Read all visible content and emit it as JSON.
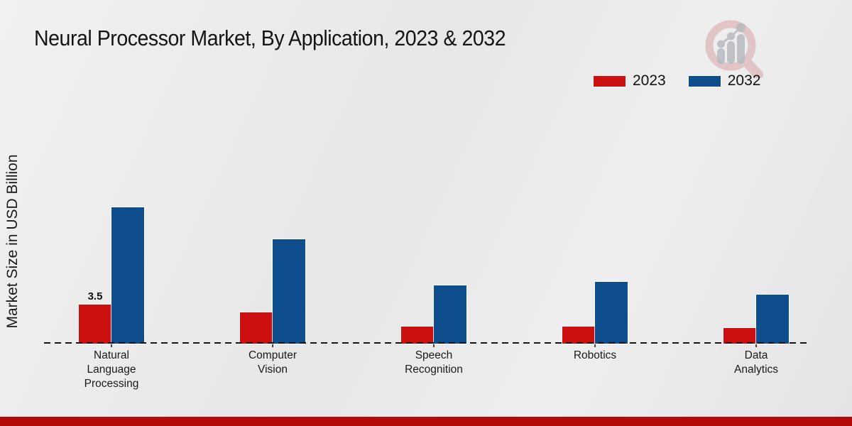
{
  "page": {
    "title": "Neural Processor Market, By Application, 2023 & 2032",
    "y_axis_label": "Market Size in USD Billion"
  },
  "legend": {
    "position": "top-right",
    "items": [
      {
        "label": "2023",
        "color": "#cc0f0f"
      },
      {
        "label": "2032",
        "color": "#0f4e8c"
      }
    ]
  },
  "chart_data": {
    "type": "bar",
    "title": "Neural Processor Market, By Application, 2023 & 2032",
    "ylabel": "Market Size in USD Billion",
    "unit": "USD Billion",
    "categories": [
      "Natural Language Processing",
      "Computer Vision",
      "Speech Recognition",
      "Robotics",
      "Data Analytics"
    ],
    "series": [
      {
        "name": "2023",
        "color": "#cc0f0f",
        "values": [
          3.5,
          2.75,
          1.5,
          1.5,
          1.4
        ]
      },
      {
        "name": "2032",
        "color": "#0f4e8c",
        "values": [
          12.1,
          9.3,
          5.2,
          5.5,
          4.35
        ]
      }
    ],
    "annotations": [
      {
        "series_index": 0,
        "category_index": 0,
        "text": "3.5"
      }
    ],
    "baseline_value": 0,
    "axis_line_style": "dashed",
    "grid": false,
    "legend_position": "top-right"
  },
  "branding": {
    "logo": "magnifier-bar-chart-watermark",
    "footer_bar_color": "#b30a0a"
  },
  "colors": {
    "series_2023": "#cc0f0f",
    "series_2032": "#0f4e8c",
    "background": "#ebebeb",
    "text": "#1a1a1a"
  }
}
